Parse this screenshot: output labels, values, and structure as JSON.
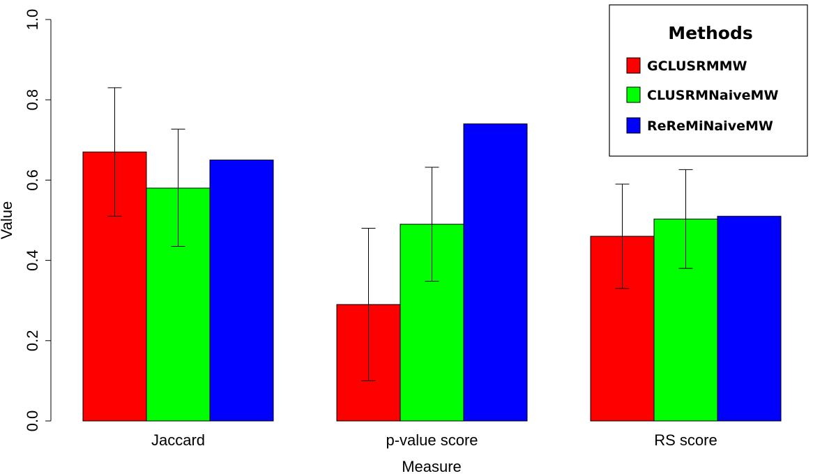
{
  "chart_data": {
    "type": "bar",
    "title": "",
    "xlabel": "Measure",
    "ylabel": "Value",
    "ylim": [
      0,
      1.0
    ],
    "yticks": [
      0.0,
      0.2,
      0.4,
      0.6,
      0.8,
      1.0
    ],
    "ytick_labels": [
      "0.0",
      "0.2",
      "0.4",
      "0.6",
      "0.8",
      "1.0"
    ],
    "categories": [
      "Jaccard",
      "p-value score",
      "RS score"
    ],
    "series": [
      {
        "name": "GCLUSRMMW",
        "color": "#ff0000",
        "values": [
          0.67,
          0.29,
          0.46
        ],
        "error_low": [
          0.51,
          0.1,
          0.33
        ],
        "error_high": [
          0.83,
          0.48,
          0.59
        ]
      },
      {
        "name": "CLUSRMNaiveMW",
        "color": "#00ff00",
        "values": [
          0.58,
          0.49,
          0.503
        ],
        "error_low": [
          0.435,
          0.348,
          0.38
        ],
        "error_high": [
          0.727,
          0.632,
          0.626
        ]
      },
      {
        "name": "ReReMiNaiveMW",
        "color": "#0000ff",
        "values": [
          0.65,
          0.74,
          0.51
        ],
        "error_low": [
          null,
          null,
          null
        ],
        "error_high": [
          null,
          null,
          null
        ]
      }
    ],
    "legend": {
      "title": "Methods",
      "position": "top-right"
    }
  }
}
